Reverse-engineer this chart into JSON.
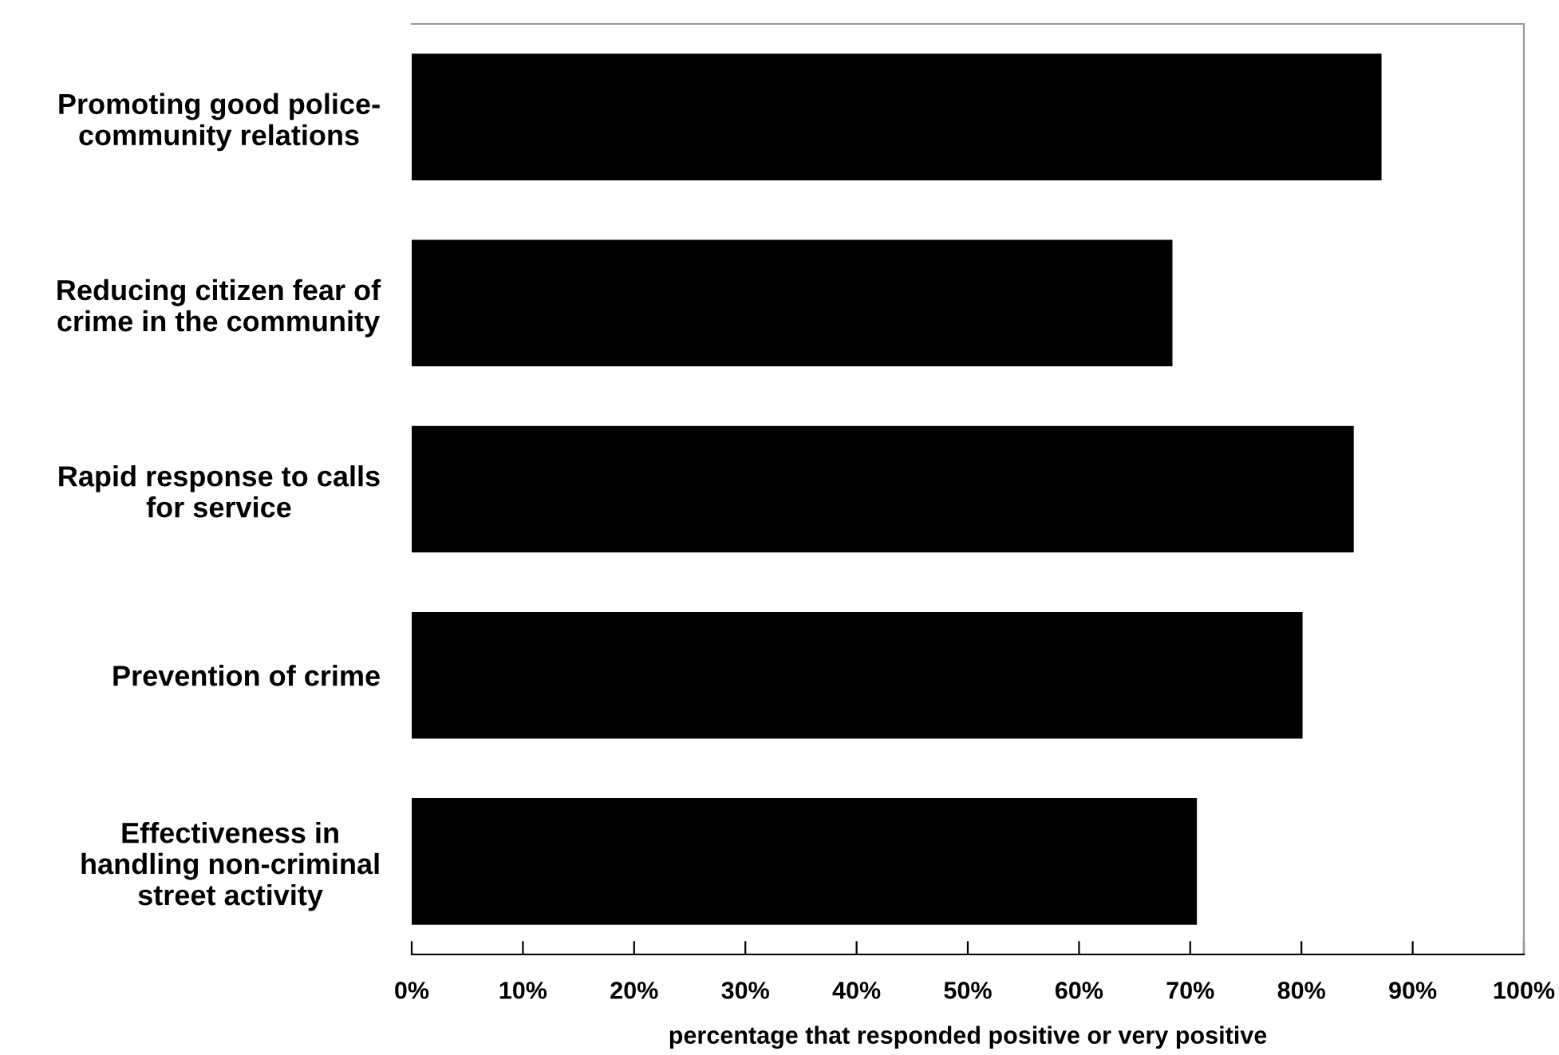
{
  "chart_data": {
    "type": "bar",
    "orientation": "horizontal",
    "xlabel": "percentage that responded positive or very positive",
    "categories": [
      "Promoting good police-\ncommunity relations",
      "Reducing citizen fear of\ncrime in the community",
      "Rapid response to calls\nfor service",
      "Prevention of crime",
      "Effectiveness in\nhandling non-criminal\nstreet activity"
    ],
    "values": [
      87.2,
      68.4,
      84.7,
      80.1,
      70.6
    ],
    "color": "#000000",
    "xlim": [
      0,
      100
    ],
    "xticks": [
      {
        "value": 0,
        "label": "0%"
      },
      {
        "value": 10,
        "label": "10%"
      },
      {
        "value": 20,
        "label": "20%"
      },
      {
        "value": 30,
        "label": "30%"
      },
      {
        "value": 40,
        "label": "40%"
      },
      {
        "value": 50,
        "label": "50%"
      },
      {
        "value": 60,
        "label": "60%"
      },
      {
        "value": 70,
        "label": "70%"
      },
      {
        "value": 80,
        "label": "80%"
      },
      {
        "value": 90,
        "label": "90%"
      },
      {
        "value": 100,
        "label": "100%"
      }
    ],
    "grid": false,
    "legend": false
  }
}
